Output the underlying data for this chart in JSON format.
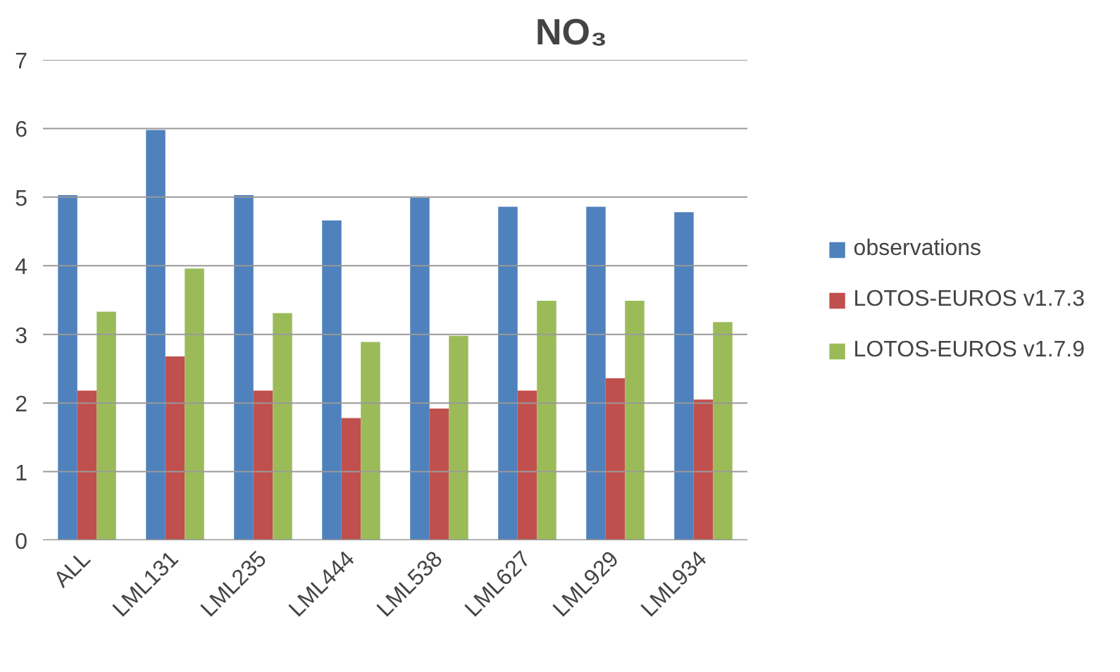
{
  "chart_data": {
    "type": "bar",
    "title": "NO₃",
    "categories": [
      "ALL",
      "LML131",
      "LML235",
      "LML444",
      "LML538",
      "LML627",
      "LML929",
      "LML934"
    ],
    "series": [
      {
        "name": "observations",
        "color": "#4f81bd",
        "values": [
          5.03,
          5.98,
          5.03,
          4.66,
          4.99,
          4.86,
          4.86,
          4.78
        ]
      },
      {
        "name": "LOTOS-EUROS v1.7.3",
        "color": "#c0504d",
        "values": [
          2.18,
          2.68,
          2.18,
          1.78,
          1.92,
          2.18,
          2.36,
          2.05
        ]
      },
      {
        "name": "LOTOS-EUROS v1.7.9",
        "color": "#9bbb59",
        "values": [
          3.33,
          3.96,
          3.31,
          2.89,
          2.98,
          3.49,
          3.49,
          3.18
        ]
      }
    ],
    "ylim": [
      0,
      7
    ],
    "yticks": [
      0,
      1,
      2,
      3,
      4,
      5,
      6,
      7
    ],
    "grid": "y",
    "legend": "right"
  }
}
